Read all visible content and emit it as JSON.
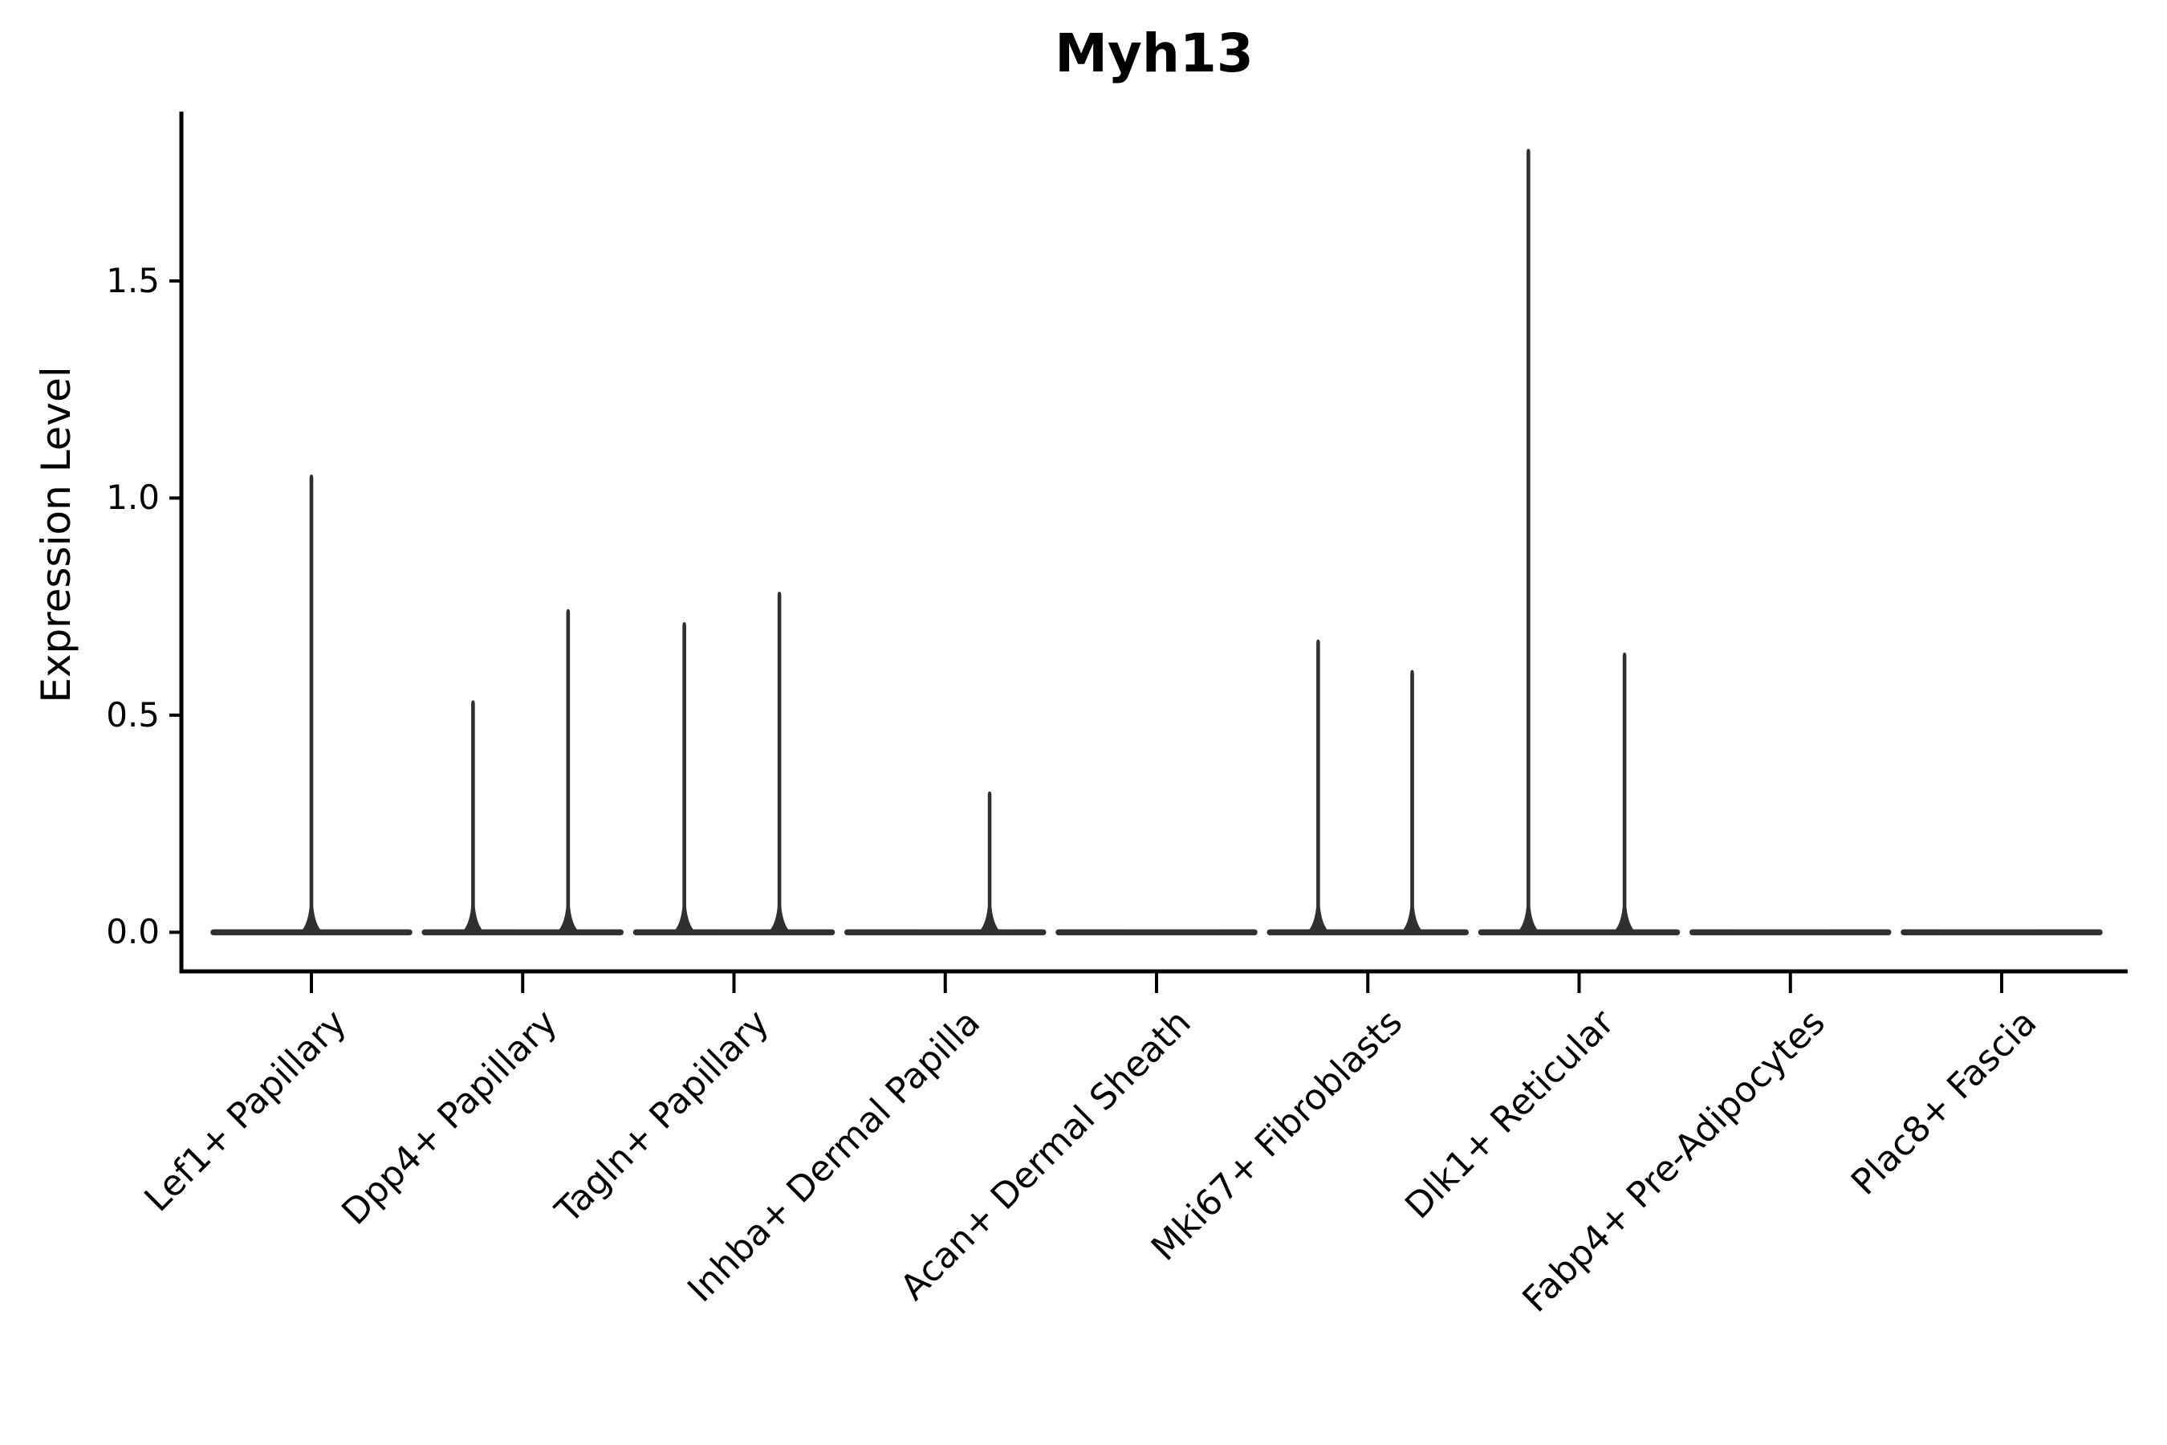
{
  "chart_data": {
    "type": "violin",
    "title": "Myh13",
    "ylabel": "Expression Level",
    "yticks": [
      "0.0",
      "0.5",
      "1.0",
      "1.5"
    ],
    "ylim": [
      -0.09,
      1.89
    ],
    "grid": false,
    "legend": "none",
    "categories": [
      "Lef1+ Papillary",
      "Dpp4+ Papillary",
      "Tagln+ Papillary",
      "Inhba+ Dermal Papilla",
      "Acan+ Dermal Sheath",
      "Mki67+ Fibroblasts",
      "Dlk1+ Reticular",
      "Fabp4+ Pre-Adipocytes",
      "Plac8+ Fascia"
    ],
    "violins": [
      {
        "category": "Lef1+ Papillary",
        "spikes": [
          {
            "offset": 0.0,
            "max": 1.05
          }
        ]
      },
      {
        "category": "Dpp4+ Papillary",
        "spikes": [
          {
            "offset": -0.235,
            "max": 0.53
          },
          {
            "offset": 0.215,
            "max": 0.74
          }
        ]
      },
      {
        "category": "Tagln+ Papillary",
        "spikes": [
          {
            "offset": -0.235,
            "max": 0.71
          },
          {
            "offset": 0.215,
            "max": 0.78
          }
        ]
      },
      {
        "category": "Inhba+ Dermal Papilla",
        "spikes": [
          {
            "offset": 0.21,
            "max": 0.32
          }
        ]
      },
      {
        "category": "Acan+ Dermal Sheath",
        "spikes": []
      },
      {
        "category": "Mki67+ Fibroblasts",
        "spikes": [
          {
            "offset": -0.235,
            "max": 0.67
          },
          {
            "offset": 0.21,
            "max": 0.6
          }
        ]
      },
      {
        "category": "Dlk1+ Reticular",
        "spikes": [
          {
            "offset": -0.24,
            "max": 1.8
          },
          {
            "offset": 0.215,
            "max": 0.64
          }
        ]
      },
      {
        "category": "Fabp4+ Pre-Adipocytes",
        "spikes": []
      },
      {
        "category": "Plac8+ Fascia",
        "spikes": []
      }
    ],
    "colors": {
      "violin": "#303030",
      "axis": "#000000",
      "text": "#000000"
    }
  }
}
